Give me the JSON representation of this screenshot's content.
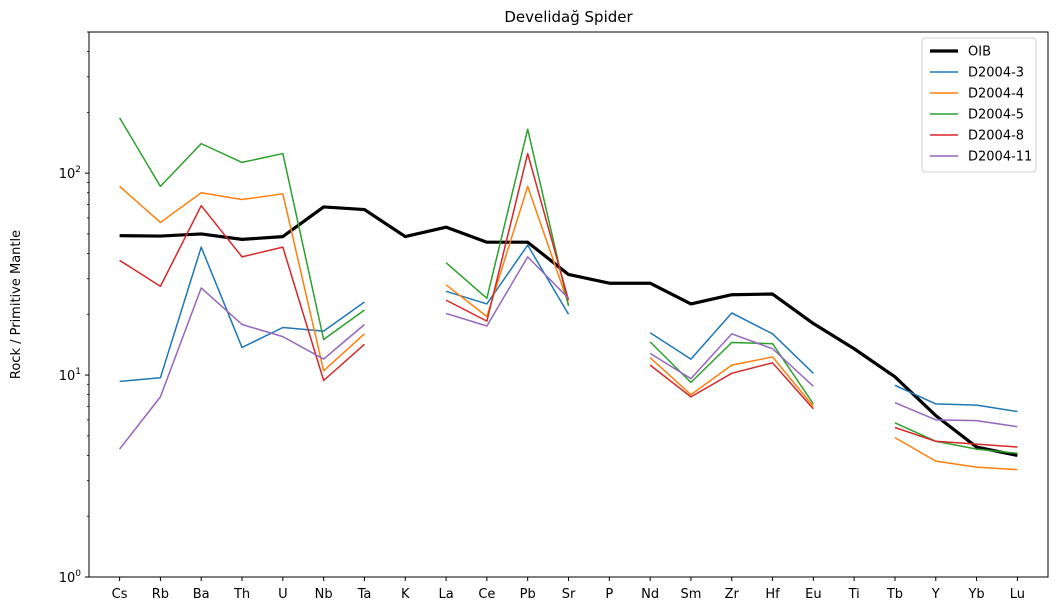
{
  "chart_data": {
    "type": "line",
    "title": "Develidağ Spider",
    "xlabel": "",
    "ylabel": "Rock / Primitive Mantle",
    "yscale": "log",
    "ylim": [
      1,
      500
    ],
    "y_tick_labels": [
      "10^0",
      "10^1",
      "10^2"
    ],
    "categories": [
      "Cs",
      "Rb",
      "Ba",
      "Th",
      "U",
      "Nb",
      "Ta",
      "K",
      "La",
      "Ce",
      "Pb",
      "Sr",
      "P",
      "Nd",
      "Sm",
      "Zr",
      "Hf",
      "Eu",
      "Ti",
      "Tb",
      "Y",
      "Yb",
      "Lu"
    ],
    "legend_position": "top-right",
    "grid": false,
    "series": [
      {
        "name": "OIB",
        "color": "#000000",
        "width": 3.2,
        "values": [
          49,
          48.8,
          50,
          47,
          48.5,
          68,
          66,
          48.5,
          54,
          45.5,
          45.5,
          31.5,
          28.5,
          28.5,
          22.5,
          25,
          25.2,
          18,
          13.5,
          9.8,
          6.3,
          4.4,
          4.0
        ]
      },
      {
        "name": "D2004-3",
        "color": "#1f77b4",
        "width": 1.5,
        "values": [
          9.3,
          9.7,
          43,
          13.7,
          17.2,
          16.5,
          23,
          null,
          26,
          22.5,
          44,
          20,
          null,
          16.2,
          12,
          20.3,
          16,
          10.2,
          null,
          8.9,
          7.2,
          7.1,
          6.6
        ]
      },
      {
        "name": "D2004-4",
        "color": "#ff7f0e",
        "width": 1.5,
        "values": [
          86,
          57,
          80,
          74,
          79,
          10.5,
          16,
          null,
          28,
          19.5,
          86,
          22.5,
          null,
          12.2,
          8.0,
          11.2,
          12.3,
          7.0,
          null,
          4.9,
          3.75,
          3.5,
          3.4
        ]
      },
      {
        "name": "D2004-5",
        "color": "#2ca02c",
        "width": 1.5,
        "values": [
          188,
          86,
          140,
          113,
          125,
          15,
          21,
          null,
          36,
          24,
          165,
          22,
          null,
          14.6,
          9.2,
          14.5,
          14.3,
          7.2,
          null,
          5.8,
          4.7,
          4.3,
          4.1
        ]
      },
      {
        "name": "D2004-8",
        "color": "#d62728",
        "width": 1.5,
        "values": [
          37,
          27.5,
          69,
          38.5,
          43,
          9.4,
          14.2,
          null,
          23.5,
          18.5,
          125,
          23.5,
          null,
          11.2,
          7.8,
          10.2,
          11.5,
          6.8,
          null,
          5.5,
          4.7,
          4.55,
          4.4
        ]
      },
      {
        "name": "D2004-11",
        "color": "#9467bd",
        "width": 1.5,
        "values": [
          4.3,
          7.8,
          27,
          17.8,
          15.5,
          12,
          17.8,
          null,
          20.2,
          17.5,
          38.5,
          24,
          null,
          12.8,
          9.6,
          16,
          13.5,
          8.8,
          null,
          7.3,
          6.0,
          5.95,
          5.55
        ]
      }
    ]
  }
}
